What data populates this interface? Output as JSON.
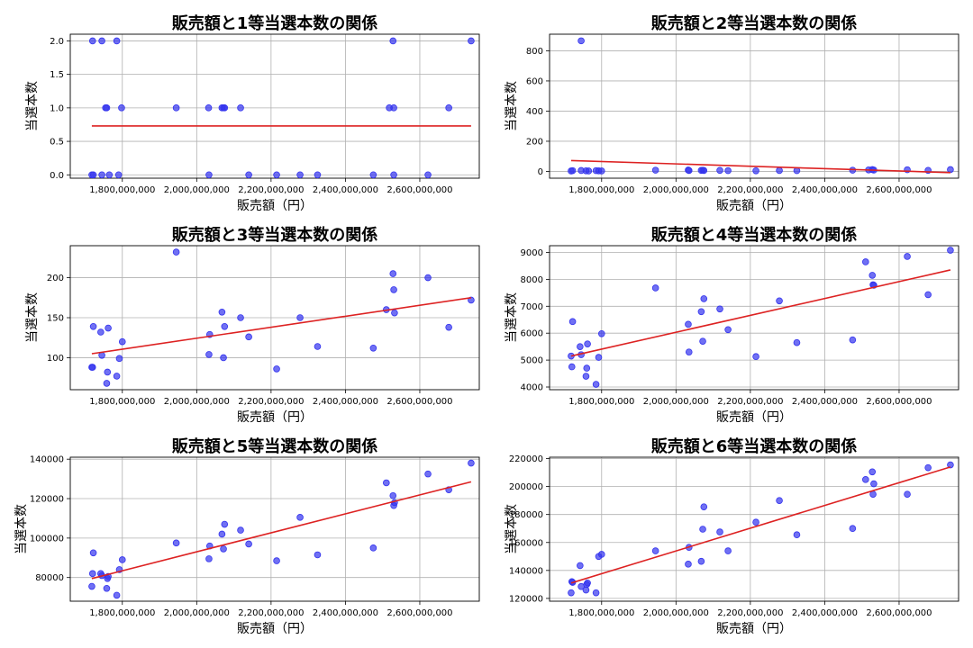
{
  "chart_data": [
    {
      "type": "scatter",
      "title": "販売額と1等当選本数の関係",
      "xlabel": "販売額（円）",
      "ylabel": "当選本数",
      "xlim": [
        1660000000,
        2760000000
      ],
      "ylim": [
        -0.05,
        2.1
      ],
      "xticks": [
        1800000000,
        2000000000,
        2200000000,
        2400000000,
        2600000000
      ],
      "xtick_labels": [
        "1,800,000,000",
        "2,000,000,000",
        "2,200,000,000",
        "2,400,000,000",
        "2,600,000,000"
      ],
      "yticks": [
        0,
        0.5,
        1,
        1.5,
        2
      ],
      "ytick_labels": [
        "0.0",
        "0.5",
        "1.0",
        "1.5",
        "2.0"
      ],
      "grid": true,
      "points": [
        [
          1720000000,
          2
        ],
        [
          1745000000,
          2
        ],
        [
          1785000000,
          2
        ],
        [
          2528000000,
          2
        ],
        [
          2738000000,
          2
        ],
        [
          1755000000,
          1
        ],
        [
          1758000000,
          1
        ],
        [
          1798000000,
          1
        ],
        [
          1945000000,
          1
        ],
        [
          2032000000,
          1
        ],
        [
          2068000000,
          1
        ],
        [
          2072000000,
          1
        ],
        [
          2075000000,
          1
        ],
        [
          2118000000,
          1
        ],
        [
          2518000000,
          1
        ],
        [
          2530000000,
          1
        ],
        [
          2678000000,
          1
        ],
        [
          1718000000,
          0
        ],
        [
          1722000000,
          0
        ],
        [
          1745000000,
          0
        ],
        [
          1765000000,
          0
        ],
        [
          1790000000,
          0
        ],
        [
          2033000000,
          0
        ],
        [
          2140000000,
          0
        ],
        [
          2215000000,
          0
        ],
        [
          2278000000,
          0
        ],
        [
          2325000000,
          0
        ],
        [
          2475000000,
          0
        ],
        [
          2530000000,
          0
        ],
        [
          2622000000,
          0
        ]
      ],
      "fit": [
        [
          1718000000,
          0.73
        ],
        [
          2738000000,
          0.73
        ]
      ]
    },
    {
      "type": "scatter",
      "title": "販売額と2等当選本数の関係",
      "xlabel": "販売額（円）",
      "ylabel": "当選本数",
      "xlim": [
        1660000000,
        2760000000
      ],
      "ylim": [
        -45,
        910
      ],
      "xticks": [
        1800000000,
        2000000000,
        2200000000,
        2400000000,
        2600000000
      ],
      "xtick_labels": [
        "1,800,000,000",
        "2,000,000,000",
        "2,200,000,000",
        "2,400,000,000",
        "2,600,000,000"
      ],
      "yticks": [
        0,
        200,
        400,
        600,
        800
      ],
      "ytick_labels": [
        "0",
        "200",
        "400",
        "600",
        "800"
      ],
      "grid": true,
      "points": [
        [
          1745000000,
          866
        ],
        [
          1718000000,
          3
        ],
        [
          1722000000,
          5
        ],
        [
          1745000000,
          6
        ],
        [
          1758000000,
          4
        ],
        [
          1765000000,
          3
        ],
        [
          1785000000,
          5
        ],
        [
          1792000000,
          4
        ],
        [
          1800000000,
          3
        ],
        [
          1945000000,
          8
        ],
        [
          2033000000,
          9
        ],
        [
          2035000000,
          6
        ],
        [
          2068000000,
          7
        ],
        [
          2072000000,
          8
        ],
        [
          2075000000,
          6
        ],
        [
          2118000000,
          7
        ],
        [
          2140000000,
          5
        ],
        [
          2215000000,
          4
        ],
        [
          2278000000,
          6
        ],
        [
          2325000000,
          5
        ],
        [
          2475000000,
          8
        ],
        [
          2518000000,
          10
        ],
        [
          2528000000,
          12
        ],
        [
          2532000000,
          9
        ],
        [
          2622000000,
          11
        ],
        [
          2678000000,
          7
        ],
        [
          2738000000,
          12
        ]
      ],
      "fit": [
        [
          1718000000,
          72
        ],
        [
          2738000000,
          -8
        ]
      ]
    },
    {
      "type": "scatter",
      "title": "販売額と3等当選本数の関係",
      "xlabel": "販売額（円）",
      "ylabel": "当選本数",
      "xlim": [
        1660000000,
        2760000000
      ],
      "ylim": [
        60,
        240
      ],
      "xticks": [
        1800000000,
        2000000000,
        2200000000,
        2400000000,
        2600000000
      ],
      "xtick_labels": [
        "1,800,000,000",
        "2,000,000,000",
        "2,200,000,000",
        "2,400,000,000",
        "2,600,000,000"
      ],
      "yticks": [
        100,
        150,
        200
      ],
      "ytick_labels": [
        "100",
        "150",
        "200"
      ],
      "grid": true,
      "points": [
        [
          1718000000,
          88
        ],
        [
          1720000000,
          88
        ],
        [
          1722000000,
          139
        ],
        [
          1742000000,
          132
        ],
        [
          1745000000,
          103
        ],
        [
          1758000000,
          68
        ],
        [
          1760000000,
          82
        ],
        [
          1762000000,
          137
        ],
        [
          1785000000,
          77
        ],
        [
          1792000000,
          99
        ],
        [
          1800000000,
          120
        ],
        [
          1945000000,
          232
        ],
        [
          2033000000,
          104
        ],
        [
          2035000000,
          129
        ],
        [
          2068000000,
          157
        ],
        [
          2072000000,
          100
        ],
        [
          2075000000,
          139
        ],
        [
          2118000000,
          150
        ],
        [
          2140000000,
          126
        ],
        [
          2215000000,
          86
        ],
        [
          2278000000,
          150
        ],
        [
          2325000000,
          114
        ],
        [
          2475000000,
          112
        ],
        [
          2510000000,
          160
        ],
        [
          2528000000,
          205
        ],
        [
          2530000000,
          185
        ],
        [
          2532000000,
          156
        ],
        [
          2622000000,
          200
        ],
        [
          2678000000,
          138
        ],
        [
          2738000000,
          172
        ]
      ],
      "fit": [
        [
          1718000000,
          105
        ],
        [
          2738000000,
          175
        ]
      ]
    },
    {
      "type": "scatter",
      "title": "販売額と4等当選本数の関係",
      "xlabel": "販売額（円）",
      "ylabel": "当選本数",
      "xlim": [
        1660000000,
        2760000000
      ],
      "ylim": [
        3900,
        9250
      ],
      "xticks": [
        1800000000,
        2000000000,
        2200000000,
        2400000000,
        2600000000
      ],
      "xtick_labels": [
        "1,800,000,000",
        "2,000,000,000",
        "2,200,000,000",
        "2,400,000,000",
        "2,600,000,000"
      ],
      "yticks": [
        4000,
        5000,
        6000,
        7000,
        8000,
        9000
      ],
      "ytick_labels": [
        "4000",
        "5000",
        "6000",
        "7000",
        "8000",
        "9000"
      ],
      "grid": true,
      "points": [
        [
          1718000000,
          5150
        ],
        [
          1720000000,
          4750
        ],
        [
          1722000000,
          6430
        ],
        [
          1742000000,
          5500
        ],
        [
          1745000000,
          5200
        ],
        [
          1758000000,
          4400
        ],
        [
          1760000000,
          4700
        ],
        [
          1762000000,
          5600
        ],
        [
          1785000000,
          4100
        ],
        [
          1792000000,
          5100
        ],
        [
          1800000000,
          5980
        ],
        [
          1945000000,
          7680
        ],
        [
          2033000000,
          6330
        ],
        [
          2035000000,
          5300
        ],
        [
          2068000000,
          6800
        ],
        [
          2072000000,
          5700
        ],
        [
          2075000000,
          7280
        ],
        [
          2118000000,
          6900
        ],
        [
          2140000000,
          6130
        ],
        [
          2215000000,
          5130
        ],
        [
          2278000000,
          7200
        ],
        [
          2325000000,
          5650
        ],
        [
          2475000000,
          5750
        ],
        [
          2510000000,
          8650
        ],
        [
          2528000000,
          8150
        ],
        [
          2530000000,
          7800
        ],
        [
          2532000000,
          7780
        ],
        [
          2622000000,
          8850
        ],
        [
          2678000000,
          7430
        ],
        [
          2738000000,
          9080
        ]
      ],
      "fit": [
        [
          1718000000,
          5150
        ],
        [
          2738000000,
          8350
        ]
      ]
    },
    {
      "type": "scatter",
      "title": "販売額と5等当選本数の関係",
      "xlabel": "販売額（円）",
      "ylabel": "当選本数",
      "xlim": [
        1660000000,
        2760000000
      ],
      "ylim": [
        68000,
        141000
      ],
      "xticks": [
        1800000000,
        2000000000,
        2200000000,
        2400000000,
        2600000000
      ],
      "xtick_labels": [
        "1,800,000,000",
        "2,000,000,000",
        "2,200,000,000",
        "2,400,000,000",
        "2,600,000,000"
      ],
      "yticks": [
        80000,
        100000,
        120000,
        140000
      ],
      "ytick_labels": [
        "80000",
        "100000",
        "120000",
        "140000"
      ],
      "grid": true,
      "points": [
        [
          1718000000,
          75500
        ],
        [
          1720000000,
          82000
        ],
        [
          1722000000,
          92500
        ],
        [
          1742000000,
          82000
        ],
        [
          1745000000,
          81000
        ],
        [
          1758000000,
          74500
        ],
        [
          1760000000,
          79500
        ],
        [
          1762000000,
          80500
        ],
        [
          1785000000,
          71000
        ],
        [
          1792000000,
          84000
        ],
        [
          1800000000,
          89000
        ],
        [
          1945000000,
          97500
        ],
        [
          2033000000,
          89500
        ],
        [
          2035000000,
          96000
        ],
        [
          2068000000,
          102000
        ],
        [
          2072000000,
          94500
        ],
        [
          2075000000,
          107000
        ],
        [
          2118000000,
          104000
        ],
        [
          2140000000,
          97000
        ],
        [
          2215000000,
          88500
        ],
        [
          2278000000,
          110500
        ],
        [
          2325000000,
          91500
        ],
        [
          2475000000,
          95000
        ],
        [
          2510000000,
          128000
        ],
        [
          2528000000,
          121500
        ],
        [
          2530000000,
          116500
        ],
        [
          2532000000,
          118000
        ],
        [
          2622000000,
          132500
        ],
        [
          2678000000,
          124500
        ],
        [
          2738000000,
          138000
        ]
      ],
      "fit": [
        [
          1718000000,
          79500
        ],
        [
          2738000000,
          128500
        ]
      ]
    },
    {
      "type": "scatter",
      "title": "販売額と6等当選本数の関係",
      "xlabel": "販売額（円）",
      "ylabel": "当選本数",
      "xlim": [
        1660000000,
        2760000000
      ],
      "ylim": [
        118000,
        221000
      ],
      "xticks": [
        1800000000,
        2000000000,
        2200000000,
        2400000000,
        2600000000
      ],
      "xtick_labels": [
        "1,800,000,000",
        "2,000,000,000",
        "2,200,000,000",
        "2,400,000,000",
        "2,600,000,000"
      ],
      "yticks": [
        120000,
        140000,
        160000,
        180000,
        200000,
        220000
      ],
      "ytick_labels": [
        "120000",
        "140000",
        "160000",
        "180000",
        "200000",
        "220000"
      ],
      "grid": true,
      "points": [
        [
          1718000000,
          124000
        ],
        [
          1720000000,
          132000
        ],
        [
          1722000000,
          131500
        ],
        [
          1742000000,
          143500
        ],
        [
          1745000000,
          128500
        ],
        [
          1758000000,
          126000
        ],
        [
          1760000000,
          130000
        ],
        [
          1762000000,
          131000
        ],
        [
          1785000000,
          124000
        ],
        [
          1792000000,
          150000
        ],
        [
          1800000000,
          151500
        ],
        [
          1945000000,
          154000
        ],
        [
          2033000000,
          144500
        ],
        [
          2035000000,
          156500
        ],
        [
          2068000000,
          146500
        ],
        [
          2072000000,
          169500
        ],
        [
          2075000000,
          185500
        ],
        [
          2118000000,
          167500
        ],
        [
          2140000000,
          154000
        ],
        [
          2215000000,
          174500
        ],
        [
          2278000000,
          190000
        ],
        [
          2325000000,
          165500
        ],
        [
          2475000000,
          170000
        ],
        [
          2510000000,
          205000
        ],
        [
          2528000000,
          210500
        ],
        [
          2530000000,
          194500
        ],
        [
          2532000000,
          202000
        ],
        [
          2622000000,
          194500
        ],
        [
          2678000000,
          213500
        ],
        [
          2738000000,
          215500
        ]
      ],
      "fit": [
        [
          1718000000,
          131000
        ],
        [
          2738000000,
          214000
        ]
      ]
    }
  ],
  "style": {
    "point_color": "#3333ee",
    "fit_color": "#dd2222",
    "grid_color": "#b0b0b0"
  }
}
